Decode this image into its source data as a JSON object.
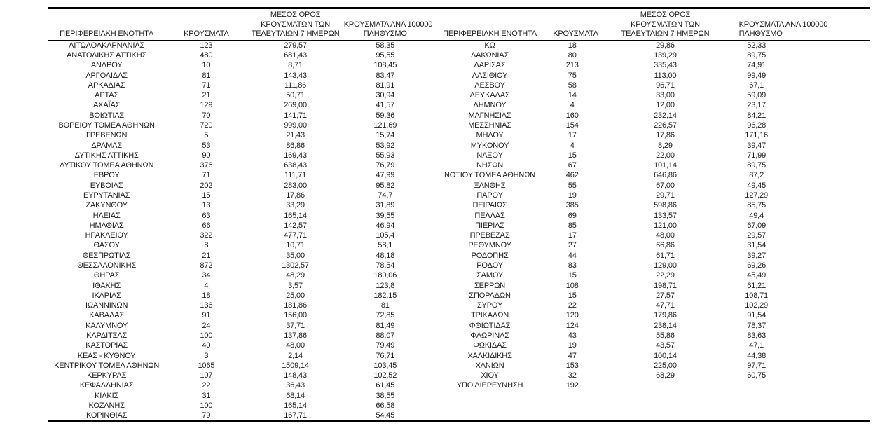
{
  "table": {
    "headers": {
      "region": "ΠΕΡΙΦΕΡΕΙΑΚΗ ΕΝΟΤΗΤΑ",
      "cases": "ΚΡΟΥΣΜΑΤΑ",
      "avg7_lines": [
        "ΜΕΣΟΣ ΟΡΟΣ",
        "ΚΡΟΥΣΜΑΤΩΝ ΤΩΝ",
        "ΤΕΛΕΥΤΑΙΩΝ 7 ΗΜΕΡΩΝ"
      ],
      "per100k_lines": [
        "ΚΡΟΥΣΜΑΤΑ ΑΝΑ 100000",
        "ΠΛΗΘΥΣΜΟ"
      ]
    },
    "left_rows": [
      [
        "ΑΙΤΩΛΟΑΚΑΡΝΑΝΙΑΣ",
        "123",
        "279,57",
        "58,35"
      ],
      [
        "ΑΝΑΤΟΛΙΚΗΣ ΑΤΤΙΚΗΣ",
        "480",
        "681,43",
        "95,55"
      ],
      [
        "ΑΝΔΡΟΥ",
        "10",
        "8,71",
        "108,45"
      ],
      [
        "ΑΡΓΟΛΙΔΑΣ",
        "81",
        "143,43",
        "83,47"
      ],
      [
        "ΑΡΚΑΔΙΑΣ",
        "71",
        "111,86",
        "81,91"
      ],
      [
        "ΑΡΤΑΣ",
        "21",
        "50,71",
        "30,94"
      ],
      [
        "ΑΧΑΪΑΣ",
        "129",
        "269,00",
        "41,57"
      ],
      [
        "ΒΟΙΩΤΙΑΣ",
        "70",
        "141,71",
        "59,36"
      ],
      [
        "ΒΟΡΕΙΟΥ ΤΟΜΕΑ ΑΘΗΝΩΝ",
        "720",
        "999,00",
        "121,69"
      ],
      [
        "ΓΡΕΒΕΝΩΝ",
        "5",
        "21,43",
        "15,74"
      ],
      [
        "ΔΡΑΜΑΣ",
        "53",
        "86,86",
        "53,92"
      ],
      [
        "ΔΥΤΙΚΗΣ ΑΤΤΙΚΗΣ",
        "90",
        "169,43",
        "55,93"
      ],
      [
        "ΔΥΤΙΚΟΥ ΤΟΜΕΑ ΑΘΗΝΩΝ",
        "376",
        "638,43",
        "76,79"
      ],
      [
        "ΕΒΡΟΥ",
        "71",
        "111,71",
        "47,99"
      ],
      [
        "ΕΥΒΟΙΑΣ",
        "202",
        "283,00",
        "95,82"
      ],
      [
        "ΕΥΡΥΤΑΝΙΑΣ",
        "15",
        "17,86",
        "74,7"
      ],
      [
        "ΖΑΚΥΝΘΟΥ",
        "13",
        "33,29",
        "31,89"
      ],
      [
        "ΗΛΕΙΑΣ",
        "63",
        "165,14",
        "39,55"
      ],
      [
        "ΗΜΑΘΙΑΣ",
        "66",
        "142,57",
        "46,94"
      ],
      [
        "ΗΡΑΚΛΕΙΟΥ",
        "322",
        "477,71",
        "105,4"
      ],
      [
        "ΘΑΣΟΥ",
        "8",
        "10,71",
        "58,1"
      ],
      [
        "ΘΕΣΠΡΩΤΙΑΣ",
        "21",
        "35,00",
        "48,18"
      ],
      [
        "ΘΕΣΣΑΛΟΝΙΚΗΣ",
        "872",
        "1302,57",
        "78,54"
      ],
      [
        "ΘΗΡΑΣ",
        "34",
        "48,29",
        "180,06"
      ],
      [
        "ΙΘΑΚΗΣ",
        "4",
        "3,57",
        "123,8"
      ],
      [
        "ΙΚΑΡΙΑΣ",
        "18",
        "25,00",
        "182,15"
      ],
      [
        "ΙΩΑΝΝΙΝΩΝ",
        "136",
        "181,86",
        "81"
      ],
      [
        "ΚΑΒΑΛΑΣ",
        "91",
        "156,00",
        "72,85"
      ],
      [
        "ΚΑΛΥΜΝΟΥ",
        "24",
        "37,71",
        "81,49"
      ],
      [
        "ΚΑΡΔΙΤΣΑΣ",
        "100",
        "137,86",
        "88,07"
      ],
      [
        "ΚΑΣΤΟΡΙΑΣ",
        "40",
        "48,00",
        "79,49"
      ],
      [
        "ΚΕΑΣ - ΚΥΘΝΟΥ",
        "3",
        "2,14",
        "76,71"
      ],
      [
        "ΚΕΝΤΡΙΚΟΥ ΤΟΜΕΑ ΑΘΗΝΩΝ",
        "1065",
        "1509,14",
        "103,45"
      ],
      [
        "ΚΕΡΚΥΡΑΣ",
        "107",
        "148,43",
        "102,52"
      ],
      [
        "ΚΕΦΑΛΛΗΝΙΑΣ",
        "22",
        "36,43",
        "61,45"
      ],
      [
        "ΚΙΛΚΙΣ",
        "31",
        "68,14",
        "38,55"
      ],
      [
        "ΚΟΖΑΝΗΣ",
        "100",
        "165,14",
        "66,58"
      ],
      [
        "ΚΟΡΙΝΘΙΑΣ",
        "79",
        "167,71",
        "54,45"
      ]
    ],
    "right_rows": [
      [
        "ΚΩ",
        "18",
        "29,86",
        "52,33"
      ],
      [
        "ΛΑΚΩΝΙΑΣ",
        "80",
        "139,29",
        "89,75"
      ],
      [
        "ΛΑΡΙΣΑΣ",
        "213",
        "335,43",
        "74,91"
      ],
      [
        "ΛΑΣΙΘΙΟΥ",
        "75",
        "113,00",
        "99,49"
      ],
      [
        "ΛΕΣΒΟΥ",
        "58",
        "96,71",
        "67,1"
      ],
      [
        "ΛΕΥΚΑΔΑΣ",
        "14",
        "33,00",
        "59,09"
      ],
      [
        "ΛΗΜΝΟΥ",
        "4",
        "12,00",
        "23,17"
      ],
      [
        "ΜΑΓΝΗΣΙΑΣ",
        "160",
        "232,14",
        "84,21"
      ],
      [
        "ΜΕΣΣΗΝΙΑΣ",
        "154",
        "226,57",
        "96,28"
      ],
      [
        "ΜΗΛΟΥ",
        "17",
        "17,86",
        "171,16"
      ],
      [
        "ΜΥΚΟΝΟΥ",
        "4",
        "8,29",
        "39,47"
      ],
      [
        "ΝΑΞΟΥ",
        "15",
        "22,00",
        "71,99"
      ],
      [
        "ΝΗΣΩΝ",
        "67",
        "101,14",
        "89,75"
      ],
      [
        "ΝΟΤΙΟΥ ΤΟΜΕΑ ΑΘΗΝΩΝ",
        "462",
        "646,86",
        "87,2"
      ],
      [
        "ΞΑΝΘΗΣ",
        "55",
        "67,00",
        "49,45"
      ],
      [
        "ΠΑΡΟΥ",
        "19",
        "29,71",
        "127,29"
      ],
      [
        "ΠΕΙΡΑΙΩΣ",
        "385",
        "598,86",
        "85,75"
      ],
      [
        "ΠΕΛΛΑΣ",
        "69",
        "133,57",
        "49,4"
      ],
      [
        "ΠΙΕΡΙΑΣ",
        "85",
        "121,00",
        "67,09"
      ],
      [
        "ΠΡΕΒΕΖΑΣ",
        "17",
        "48,00",
        "29,57"
      ],
      [
        "ΡΕΘΥΜΝΟΥ",
        "27",
        "66,86",
        "31,54"
      ],
      [
        "ΡΟΔΟΠΗΣ",
        "44",
        "61,71",
        "39,27"
      ],
      [
        "ΡΟΔΟΥ",
        "83",
        "129,00",
        "69,26"
      ],
      [
        "ΣΑΜΟΥ",
        "15",
        "22,29",
        "45,49"
      ],
      [
        "ΣΕΡΡΩΝ",
        "108",
        "198,71",
        "61,21"
      ],
      [
        "ΣΠΟΡΑΔΩΝ",
        "15",
        "27,57",
        "108,71"
      ],
      [
        "ΣΥΡΟΥ",
        "22",
        "47,71",
        "102,29"
      ],
      [
        "ΤΡΙΚΑΛΩΝ",
        "120",
        "179,86",
        "91,54"
      ],
      [
        "ΦΘΙΩΤΙΔΑΣ",
        "124",
        "238,14",
        "78,37"
      ],
      [
        "ΦΛΩΡΙΝΑΣ",
        "43",
        "55,86",
        "83,63"
      ],
      [
        "ΦΩΚΙΔΑΣ",
        "19",
        "43,57",
        "47,1"
      ],
      [
        "ΧΑΛΚΙΔΙΚΗΣ",
        "47",
        "100,14",
        "44,38"
      ],
      [
        "ΧΑΝΙΩΝ",
        "153",
        "225,00",
        "97,71"
      ],
      [
        "ΧΙΟΥ",
        "32",
        "68,29",
        "60,75"
      ],
      [
        "ΥΠΟ ΔΙΕΡΕΥΝΗΣΗ",
        "192",
        "",
        ""
      ]
    ]
  }
}
